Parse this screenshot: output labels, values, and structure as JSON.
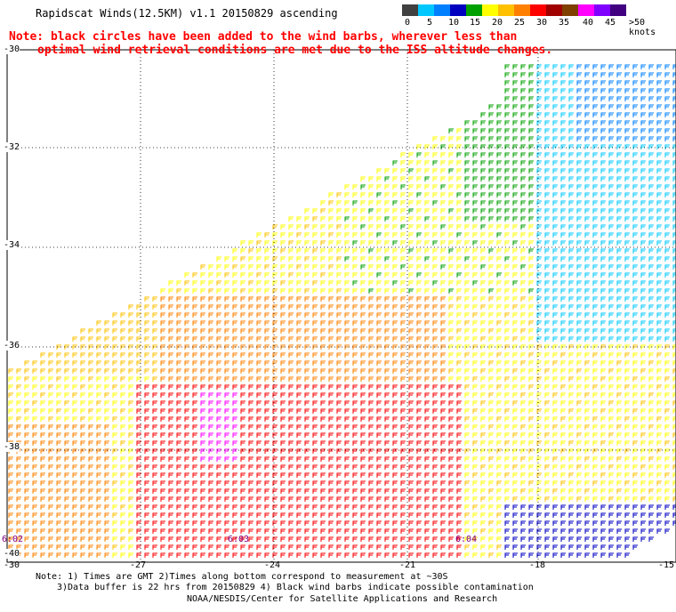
{
  "header": {
    "title": "Rapidscat Winds(12.5KM) v1.1 20150829 ascending"
  },
  "note": {
    "line1": "Note: black circles have been added to the wind barbs, wherever less than",
    "line2": "optimal wind retrieval conditions are met due to the ISS altitude changes."
  },
  "colorbar": {
    "labels": [
      "0",
      "5",
      "10",
      "15",
      "20",
      "25",
      "30",
      "35",
      "40",
      "45",
      ">50"
    ],
    "unit": "knots",
    "colors": [
      "#404040",
      "#00c8ff",
      "#0080ff",
      "#0000c0",
      "#00a000",
      "#ffff00",
      "#ffc000",
      "#ff8000",
      "#ff0000",
      "#a00000",
      "#804000",
      "#ff00ff",
      "#8000ff",
      "#400080"
    ]
  },
  "axes": {
    "lat_labels": [
      "-30",
      "-32",
      "-34",
      "-36",
      "-38",
      "-40"
    ],
    "lon_labels": [
      "-30",
      "-27",
      "-24",
      "-21",
      "-18",
      "-15"
    ]
  },
  "time_labels": [
    "6:02",
    "6:03",
    "6:04"
  ],
  "footer": {
    "note1": "Note: 1) Times are GMT 2)Times along bottom correspond to measurement at ~30S",
    "note2": "3)Data buffer is 22 hrs from 20150829 4) Black wind barbs indicate possible contamination",
    "credit": "NOAA/NESDIS/Center for Satellite Applications and Research"
  }
}
